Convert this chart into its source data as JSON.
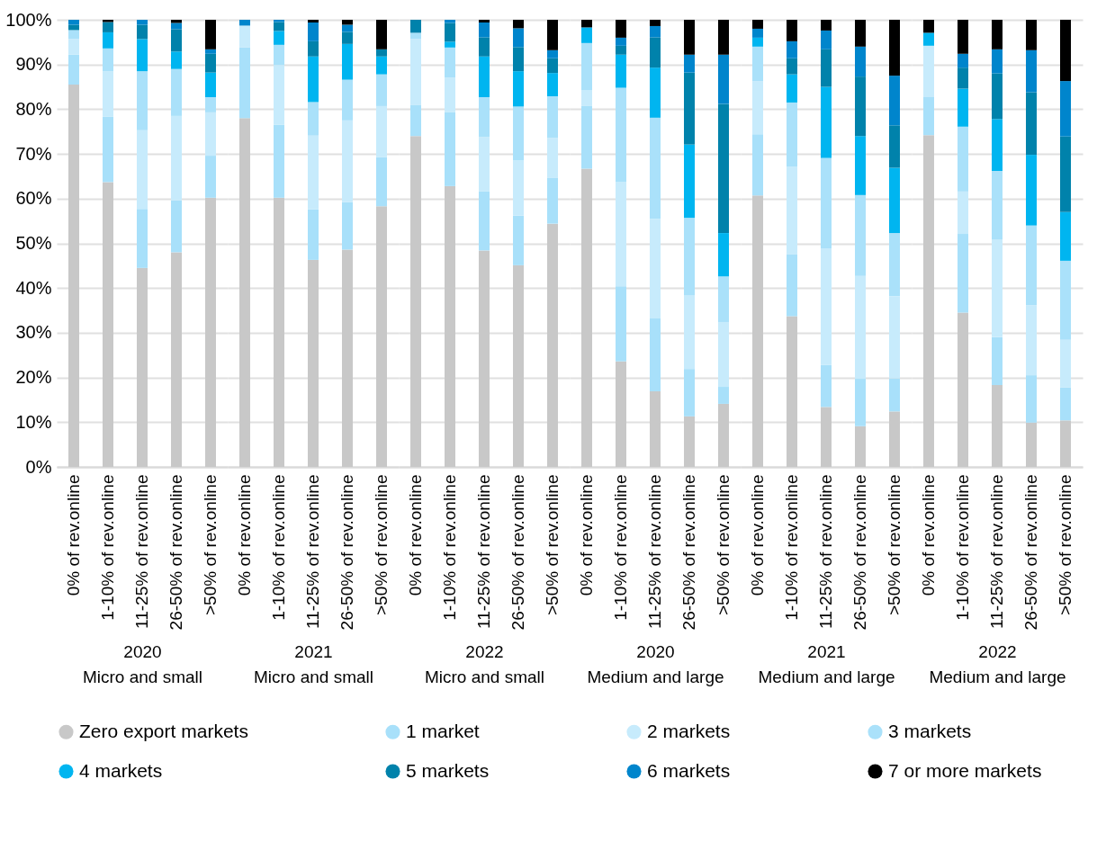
{
  "chart_data": [
    {
      "type": "bar",
      "stacked": true,
      "xlabel": "2020\nMicro and small",
      "categories": [
        "0% of rev.online",
        "1-10% of rev.online",
        "11-25% of rev.online",
        "26-50% of rev.online",
        ">50% of rev.online"
      ],
      "ylim": [
        0,
        100
      ],
      "yticks": [
        {
          "value": 0,
          "label": "0%"
        },
        {
          "value": 10,
          "label": "10%"
        },
        {
          "value": 20,
          "label": "20%"
        },
        {
          "value": 30,
          "label": "30%"
        },
        {
          "value": 40,
          "label": "40%"
        },
        {
          "value": 50,
          "label": "50%"
        },
        {
          "value": 60,
          "label": "60%"
        },
        {
          "value": 70,
          "label": "70%"
        },
        {
          "value": 80,
          "label": "80%"
        },
        {
          "value": 90,
          "label": "90%"
        },
        {
          "value": 100,
          "label": "100%"
        }
      ],
      "grid": "y",
      "legend": "bottom",
      "series": [
        {
          "name": "Zero export markets",
          "color": "#c8c8c8",
          "values": [
            85.5,
            63.7,
            44.5,
            48.0,
            60.2
          ]
        },
        {
          "name": "1 market",
          "color": "#a8e0fa",
          "values": [
            6.7,
            14.6,
            13.2,
            11.6,
            9.4
          ]
        },
        {
          "name": "2 markets",
          "color": "#c7ebfc",
          "values": [
            3.5,
            10.2,
            17.6,
            18.9,
            9.7
          ]
        },
        {
          "name": "3 markets",
          "color": "#aae1fa",
          "values": [
            2.0,
            5.1,
            13.2,
            10.5,
            3.4
          ]
        },
        {
          "name": "4 markets",
          "color": "#00b5f0",
          "values": [
            0,
            3.6,
            7.2,
            3.9,
            5.5
          ]
        },
        {
          "name": "5 markets",
          "color": "#0082ab",
          "values": [
            1.2,
            2.3,
            3.2,
            5.0,
            4.2
          ]
        },
        {
          "name": "6 markets",
          "color": "#0085cc",
          "values": [
            1.1,
            0,
            1.1,
            1.4,
            1.0
          ]
        },
        {
          "name": "7 or more markets",
          "color": "#000000",
          "values": [
            0,
            0.5,
            0,
            0.7,
            6.6
          ]
        }
      ]
    },
    {
      "type": "bar",
      "stacked": true,
      "xlabel": "2021\nMicro and small",
      "categories": [
        "0% of rev.online",
        "1-10% of rev.online",
        "11-25% of rev.online",
        "26-50% of rev.online",
        ">50% of rev.online"
      ],
      "ylim": [
        0,
        100
      ],
      "yticks": [
        {
          "value": 0,
          "label": "0%"
        },
        {
          "value": 10,
          "label": "10%"
        },
        {
          "value": 20,
          "label": "20%"
        },
        {
          "value": 30,
          "label": "30%"
        },
        {
          "value": 40,
          "label": "40%"
        },
        {
          "value": 50,
          "label": "50%"
        },
        {
          "value": 60,
          "label": "60%"
        },
        {
          "value": 70,
          "label": "70%"
        },
        {
          "value": 80,
          "label": "80%"
        },
        {
          "value": 90,
          "label": "90%"
        },
        {
          "value": 100,
          "label": "100%"
        }
      ],
      "grid": "y",
      "tick_labels": "x",
      "series": [
        {
          "name": "Zero export markets",
          "color": "#c8c8c8",
          "values": [
            78.0,
            60.2,
            46.3,
            48.6,
            58.3
          ]
        },
        {
          "name": "1 market",
          "color": "#a8e0fa",
          "values": [
            15.8,
            16.3,
            11.3,
            10.6,
            11.0
          ]
        },
        {
          "name": "2 markets",
          "color": "#c7ebfc",
          "values": [
            4.9,
            13.4,
            16.5,
            18.3,
            11.4
          ]
        },
        {
          "name": "3 markets",
          "color": "#aae1fa",
          "values": [
            0,
            4.5,
            7.5,
            9.1,
            7.1
          ]
        },
        {
          "name": "4 markets",
          "color": "#00b5f0",
          "values": [
            0,
            3.1,
            10.2,
            8.0,
            4.0
          ]
        },
        {
          "name": "5 markets",
          "color": "#0082ab",
          "values": [
            0,
            2.0,
            3.4,
            2.7,
            1.6
          ]
        },
        {
          "name": "6 markets",
          "color": "#0085cc",
          "values": [
            1.3,
            0.5,
            4.2,
            1.6,
            0
          ]
        },
        {
          "name": "7 or more markets",
          "color": "#000000",
          "values": [
            0,
            0,
            0.6,
            1.1,
            6.6
          ]
        }
      ]
    },
    {
      "type": "bar",
      "stacked": true,
      "xlabel": "2022\nMicro and small",
      "categories": [
        "0% of rev.online",
        "1-10% of rev.online",
        "11-25% of rev.online",
        "26-50% of rev.online",
        ">50% of rev.online"
      ],
      "ylim": [
        0,
        100
      ],
      "yticks": [
        {
          "value": 0,
          "label": "0%"
        },
        {
          "value": 10,
          "label": "10%"
        },
        {
          "value": 20,
          "label": "20%"
        },
        {
          "value": 30,
          "label": "30%"
        },
        {
          "value": 40,
          "label": "40%"
        },
        {
          "value": 50,
          "label": "50%"
        },
        {
          "value": 60,
          "label": "60%"
        },
        {
          "value": 70,
          "label": "70%"
        },
        {
          "value": 80,
          "label": "80%"
        },
        {
          "value": 90,
          "label": "90%"
        },
        {
          "value": 100,
          "label": "100%"
        }
      ],
      "grid": "y",
      "tick_labels": "x",
      "series": [
        {
          "name": "Zero export markets",
          "color": "#c8c8c8",
          "values": [
            74.0,
            62.8,
            48.4,
            45.1,
            54.4
          ]
        },
        {
          "name": "1 market",
          "color": "#a8e0fa",
          "values": [
            7.0,
            16.5,
            13.2,
            11.1,
            10.2
          ]
        },
        {
          "name": "2 markets",
          "color": "#c7ebfc",
          "values": [
            14.7,
            7.8,
            12.2,
            12.4,
            9.0
          ]
        },
        {
          "name": "3 markets",
          "color": "#aae1fa",
          "values": [
            1.4,
            6.7,
            8.9,
            12.0,
            9.3
          ]
        },
        {
          "name": "4 markets",
          "color": "#00b5f0",
          "values": [
            0,
            1.3,
            9.1,
            7.9,
            5.2
          ]
        },
        {
          "name": "5 markets",
          "color": "#0082ab",
          "values": [
            2.9,
            4.2,
            4.3,
            5.4,
            3.3
          ]
        },
        {
          "name": "6 markets",
          "color": "#0085cc",
          "values": [
            0,
            0.7,
            3.3,
            4.2,
            1.8
          ]
        },
        {
          "name": "7 or more markets",
          "color": "#000000",
          "values": [
            0,
            0,
            0.6,
            1.9,
            6.8
          ]
        }
      ]
    },
    {
      "type": "bar",
      "stacked": true,
      "xlabel": "2020\nMedium and large",
      "categories": [
        "0% of rev.online",
        "1-10% of rev.online",
        "11-25% of rev.online",
        "26-50% of rev.online",
        ">50% of rev.online"
      ],
      "ylim": [
        0,
        100
      ],
      "yticks": [
        {
          "value": 0,
          "label": "0%"
        },
        {
          "value": 10,
          "label": "10%"
        },
        {
          "value": 20,
          "label": "20%"
        },
        {
          "value": 30,
          "label": "30%"
        },
        {
          "value": 40,
          "label": "40%"
        },
        {
          "value": 50,
          "label": "50%"
        },
        {
          "value": 60,
          "label": "60%"
        },
        {
          "value": 70,
          "label": "70%"
        },
        {
          "value": 80,
          "label": "80%"
        },
        {
          "value": 90,
          "label": "90%"
        },
        {
          "value": 100,
          "label": "100%"
        }
      ],
      "grid": "y",
      "tick_labels": "x",
      "series": [
        {
          "name": "Zero export markets",
          "color": "#c8c8c8",
          "values": [
            66.7,
            23.6,
            16.9,
            11.3,
            14.1
          ]
        },
        {
          "name": "1 market",
          "color": "#a8e0fa",
          "values": [
            14.0,
            16.8,
            16.3,
            10.6,
            3.8
          ]
        },
        {
          "name": "2 markets",
          "color": "#c7ebfc",
          "values": [
            3.5,
            23.4,
            22.3,
            16.5,
            14.5
          ]
        },
        {
          "name": "3 markets",
          "color": "#aae1fa",
          "values": [
            10.6,
            21.0,
            22.6,
            17.3,
            10.2
          ]
        },
        {
          "name": "4 markets",
          "color": "#00b5f0",
          "values": [
            3.5,
            7.4,
            11.2,
            16.4,
            9.7
          ]
        },
        {
          "name": "5 markets",
          "color": "#0082ab",
          "values": [
            0,
            2.0,
            6.8,
            16.1,
            28.9
          ]
        },
        {
          "name": "6 markets",
          "color": "#0085cc",
          "values": [
            0,
            1.8,
            2.5,
            4.0,
            11.0
          ]
        },
        {
          "name": "7 or more markets",
          "color": "#000000",
          "values": [
            1.7,
            4.0,
            1.4,
            7.8,
            7.8
          ]
        }
      ]
    },
    {
      "type": "bar",
      "stacked": true,
      "xlabel": "2021\nMedium and large",
      "categories": [
        "0% of rev.online",
        "1-10% of rev.online",
        "11-25% of rev.online",
        "26-50% of rev.online",
        ">50% of rev.online"
      ],
      "ylim": [
        0,
        100
      ],
      "yticks": [
        {
          "value": 0,
          "label": "0%"
        },
        {
          "value": 10,
          "label": "10%"
        },
        {
          "value": 20,
          "label": "20%"
        },
        {
          "value": 30,
          "label": "30%"
        },
        {
          "value": 40,
          "label": "40%"
        },
        {
          "value": 50,
          "label": "50%"
        },
        {
          "value": 60,
          "label": "60%"
        },
        {
          "value": 70,
          "label": "70%"
        },
        {
          "value": 80,
          "label": "80%"
        },
        {
          "value": 90,
          "label": "90%"
        },
        {
          "value": 100,
          "label": "100%"
        }
      ],
      "grid": "y",
      "tick_labels": "x",
      "series": [
        {
          "name": "Zero export markets",
          "color": "#c8c8c8",
          "values": [
            60.7,
            33.7,
            13.4,
            9.1,
            12.4
          ]
        },
        {
          "name": "1 market",
          "color": "#a8e0fa",
          "values": [
            13.7,
            13.9,
            9.4,
            10.6,
            7.4
          ]
        },
        {
          "name": "2 markets",
          "color": "#c7ebfc",
          "values": [
            11.9,
            19.6,
            26.1,
            23.0,
            18.4
          ]
        },
        {
          "name": "3 markets",
          "color": "#aae1fa",
          "values": [
            7.7,
            14.3,
            20.2,
            18.1,
            14.1
          ]
        },
        {
          "name": "4 markets",
          "color": "#00b5f0",
          "values": [
            2.0,
            6.3,
            15.9,
            13.2,
            14.6
          ]
        },
        {
          "name": "5 markets",
          "color": "#0082ab",
          "values": [
            0,
            3.6,
            8.4,
            13.3,
            9.5
          ]
        },
        {
          "name": "6 markets",
          "color": "#0085cc",
          "values": [
            2.0,
            3.8,
            4.2,
            6.7,
            11.1
          ]
        },
        {
          "name": "7 or more markets",
          "color": "#000000",
          "values": [
            2.0,
            4.8,
            2.4,
            6.0,
            12.5
          ]
        }
      ]
    },
    {
      "type": "bar",
      "stacked": true,
      "xlabel": "2022\nMedium and large",
      "categories": [
        "0% of rev.online",
        "1-10% of rev.online",
        "11-25% of rev.online",
        "26-50% of rev.online",
        ">50% of rev.online"
      ],
      "ylim": [
        0,
        100
      ],
      "yticks": [
        {
          "value": 0,
          "label": "0%"
        },
        {
          "value": 10,
          "label": "10%"
        },
        {
          "value": 20,
          "label": "20%"
        },
        {
          "value": 30,
          "label": "30%"
        },
        {
          "value": 40,
          "label": "40%"
        },
        {
          "value": 50,
          "label": "50%"
        },
        {
          "value": 60,
          "label": "60%"
        },
        {
          "value": 70,
          "label": "70%"
        },
        {
          "value": 80,
          "label": "80%"
        },
        {
          "value": 90,
          "label": "90%"
        },
        {
          "value": 100,
          "label": "100%"
        }
      ],
      "grid": "y",
      "tick_labels": "x",
      "series": [
        {
          "name": "Zero export markets",
          "color": "#c8c8c8",
          "values": [
            74.2,
            34.5,
            18.3,
            9.9,
            10.4
          ]
        },
        {
          "name": "1 market",
          "color": "#a8e0fa",
          "values": [
            8.5,
            17.6,
            10.7,
            10.6,
            7.4
          ]
        },
        {
          "name": "2 markets",
          "color": "#c7ebfc",
          "values": [
            11.5,
            9.5,
            21.8,
            15.7,
            10.6
          ]
        },
        {
          "name": "3 markets",
          "color": "#aae1fa",
          "values": [
            0,
            14.5,
            15.4,
            17.8,
            17.7
          ]
        },
        {
          "name": "4 markets",
          "color": "#00b5f0",
          "values": [
            2.9,
            8.5,
            11.6,
            15.8,
            10.9
          ]
        },
        {
          "name": "5 markets",
          "color": "#0082ab",
          "values": [
            0,
            4.7,
            10.2,
            14.0,
            16.9
          ]
        },
        {
          "name": "6 markets",
          "color": "#0085cc",
          "values": [
            0,
            3.1,
            5.4,
            9.4,
            12.4
          ]
        },
        {
          "name": "7 or more markets",
          "color": "#000000",
          "values": [
            2.9,
            7.6,
            6.6,
            6.8,
            13.7
          ]
        }
      ]
    }
  ]
}
